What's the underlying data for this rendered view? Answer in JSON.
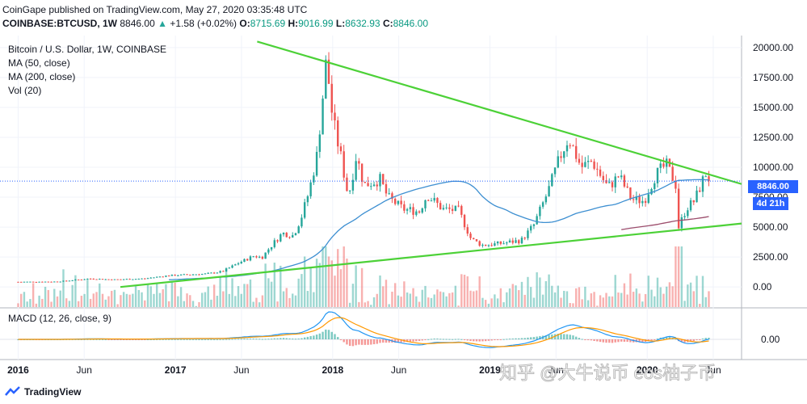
{
  "header": {
    "publisher_line": "CoinGape published on TradingView.com, May 27, 2020 03:35:48 UTC",
    "symbol": "COINBASE:BTCUSD, 1W",
    "last": "8846.00",
    "change": "+1.58 (+0.02%)",
    "open_label": "O:",
    "open": "8715.69",
    "high_label": "H:",
    "high": "9016.99",
    "low_label": "L:",
    "low": "8632.93",
    "close_label": "C:",
    "close": "8846.00"
  },
  "legend": {
    "title": "Bitcoin / U.S. Dollar, 1W, COINBASE",
    "ma50": "MA (50, close)",
    "ma200": "MA (200, close)",
    "vol": "Vol (20)",
    "macd": "MACD (12, 26, close, 9)"
  },
  "badges": {
    "price": "8846.00",
    "countdown": "4d 21h"
  },
  "footer": {
    "brand": "TradingView"
  },
  "watermark": "知乎 @大牛说币 eos柚子币",
  "colors": {
    "up": "#26a69a",
    "down": "#ef5350",
    "ma50": "#3d8fd1",
    "ma200": "#9c4d6c",
    "trend": "#4cd137",
    "macd": "#2196f3",
    "signal": "#ff9800",
    "badge": "#2962ff"
  },
  "chart_data": {
    "type": "candlestick",
    "x_ticks": [
      "2016",
      "Jun",
      "2017",
      "Jun",
      "2018",
      "Jun",
      "2019",
      "Jun",
      "2020",
      "Jun"
    ],
    "y_ticks": [
      "20000.00",
      "17500.00",
      "15000.00",
      "12500.00",
      "10000.00",
      "7500.00",
      "5000.00",
      "2500.00",
      "0.00"
    ],
    "ylim": [
      -1000,
      21000
    ],
    "macd_y_tick": "0.00",
    "last_price": 8846,
    "price_points": [
      [
        2016.0,
        430
      ],
      [
        2016.25,
        450
      ],
      [
        2016.45,
        700
      ],
      [
        2016.6,
        620
      ],
      [
        2016.8,
        700
      ],
      [
        2016.95,
        950
      ],
      [
        2017.1,
        1050
      ],
      [
        2017.2,
        1100
      ],
      [
        2017.3,
        1300
      ],
      [
        2017.4,
        2000
      ],
      [
        2017.5,
        2600
      ],
      [
        2017.55,
        2450
      ],
      [
        2017.6,
        3300
      ],
      [
        2017.68,
        4500
      ],
      [
        2017.75,
        4300
      ],
      [
        2017.8,
        5800
      ],
      [
        2017.85,
        8000
      ],
      [
        2017.9,
        11000
      ],
      [
        2017.96,
        19000
      ],
      [
        2018.0,
        14000
      ],
      [
        2018.05,
        11000
      ],
      [
        2018.1,
        7500
      ],
      [
        2018.15,
        11000
      ],
      [
        2018.2,
        8500
      ],
      [
        2018.3,
        9000
      ],
      [
        2018.35,
        7500
      ],
      [
        2018.45,
        6500
      ],
      [
        2018.55,
        6300
      ],
      [
        2018.6,
        7700
      ],
      [
        2018.7,
        6500
      ],
      [
        2018.8,
        6400
      ],
      [
        2018.88,
        4000
      ],
      [
        2018.95,
        3500
      ],
      [
        2019.05,
        3600
      ],
      [
        2019.2,
        3900
      ],
      [
        2019.28,
        5200
      ],
      [
        2019.37,
        8000
      ],
      [
        2019.45,
        11000
      ],
      [
        2019.5,
        12500
      ],
      [
        2019.58,
        10000
      ],
      [
        2019.65,
        10500
      ],
      [
        2019.75,
        8300
      ],
      [
        2019.82,
        9300
      ],
      [
        2019.9,
        7300
      ],
      [
        2019.98,
        7200
      ],
      [
        2020.05,
        9300
      ],
      [
        2020.12,
        10200
      ],
      [
        2020.18,
        8700
      ],
      [
        2020.2,
        5000
      ],
      [
        2020.25,
        6600
      ],
      [
        2020.3,
        7200
      ],
      [
        2020.35,
        8800
      ],
      [
        2020.38,
        9700
      ],
      [
        2020.41,
        8846
      ]
    ],
    "annotations": [
      "descending resistance trendline",
      "ascending support trendline"
    ]
  }
}
